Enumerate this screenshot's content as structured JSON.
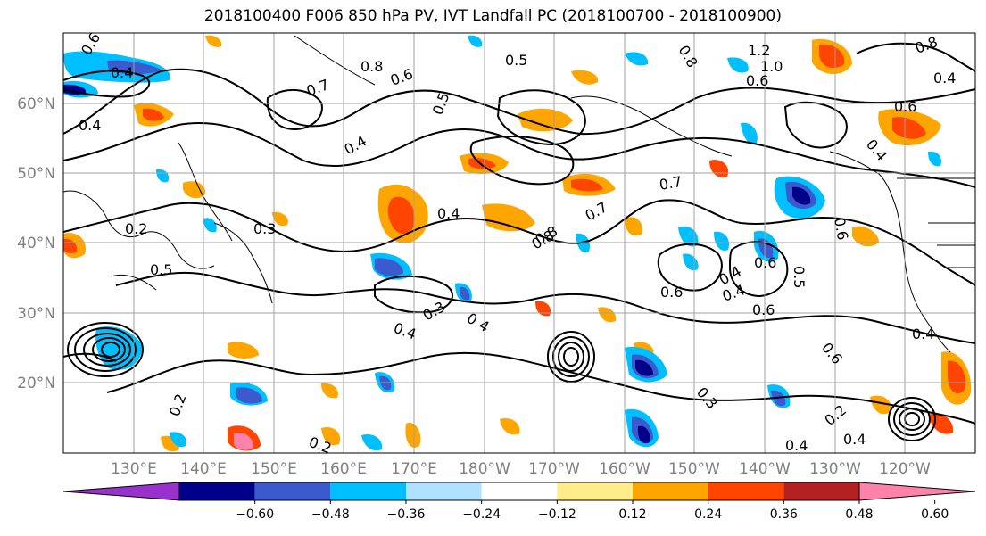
{
  "title": "2018100400 F006 850 hPa PV, IVT Landfall PC (2018100700 - 2018100900)",
  "lat_labels": [
    "60°N",
    "50°N",
    "40°N",
    "30°N",
    "20°N"
  ],
  "lon_labels": [
    "130°E",
    "140°E",
    "150°E",
    "160°E",
    "170°E",
    "180°W",
    "170°W",
    "160°W",
    "150°W",
    "140°W",
    "130°W",
    "120°W"
  ],
  "colorbar": {
    "colors": [
      "#9932cc",
      "#00008b",
      "#3a5acd",
      "#00bfff",
      "#b0e2ff",
      "#ffffff",
      "#ffec8b",
      "#ffa500",
      "#ff4500",
      "#b22222",
      "#ff82ab"
    ],
    "ticks": [
      "−0.60",
      "−0.48",
      "−0.36",
      "−0.24",
      "−0.12",
      "0.12",
      "0.24",
      "0.36",
      "0.48",
      "0.60"
    ]
  },
  "contour_labels": [
    "0.6",
    "0.8",
    "0.6",
    "0.5",
    "0.7",
    "0.4",
    "0.8",
    "0.5",
    "0.4",
    "0.7",
    "0.8",
    "0.4",
    "0.3",
    "0.2",
    "0.5",
    "0.3",
    "0.4",
    "0.6",
    "0.8",
    "0.6",
    "0.4",
    "0.7",
    "0.6",
    "0.4",
    "0.6",
    "0.2",
    "0.4",
    "0.4",
    "0.6",
    "0.5",
    "0.2",
    "0.4",
    "0.3",
    "0.4",
    "0.2",
    "0.4",
    "0.4",
    "1.2",
    "1.0",
    "0.8",
    "0.6",
    "0.6",
    "0.4"
  ]
}
